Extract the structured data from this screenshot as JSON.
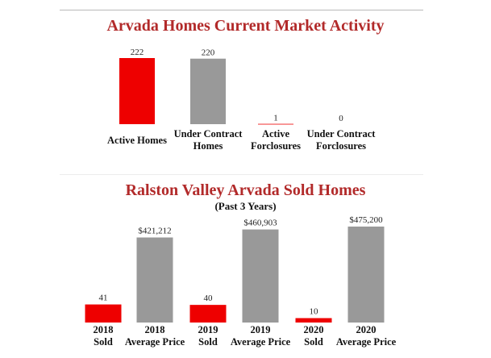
{
  "chart_data": [
    {
      "type": "bar",
      "title": "Arvada Homes Current Market Activity",
      "categories": [
        [
          "Active Homes"
        ],
        [
          "Under Contract",
          "Homes"
        ],
        [
          "Active",
          "Forclosures"
        ],
        [
          "Under Contract",
          "Forclosures"
        ]
      ],
      "values": [
        222,
        220,
        1,
        0
      ],
      "value_labels": [
        "222",
        "220",
        "1",
        "0"
      ],
      "colors": [
        "#ee0000",
        "#999999",
        "#ee0000",
        "#999999"
      ],
      "ylim": [
        0,
        222
      ],
      "legend": "none",
      "grid": false
    },
    {
      "type": "bar",
      "title": "Ralston Valley Arvada Sold Homes",
      "subtitle": "(Past 3 Years)",
      "categories": [
        [
          "2018",
          "Sold"
        ],
        [
          "2018",
          "Average Price"
        ],
        [
          "2019",
          "Sold"
        ],
        [
          "2019",
          "Average Price"
        ],
        [
          "2020",
          "Sold"
        ],
        [
          "2020",
          "Average Price"
        ]
      ],
      "values": [
        41,
        421212,
        40,
        460903,
        10,
        475200
      ],
      "value_labels": [
        "41",
        "$421,212",
        "40",
        "$460,903",
        "10",
        "$475,200"
      ],
      "kinds": [
        "count",
        "price",
        "count",
        "price",
        "count",
        "price"
      ],
      "count_ylim": [
        0,
        150
      ],
      "price_ylim": [
        0,
        475200
      ],
      "colors": [
        "#ee0000",
        "#999999",
        "#ee0000",
        "#999999",
        "#ee0000",
        "#999999"
      ],
      "legend": "none",
      "grid": false
    }
  ]
}
